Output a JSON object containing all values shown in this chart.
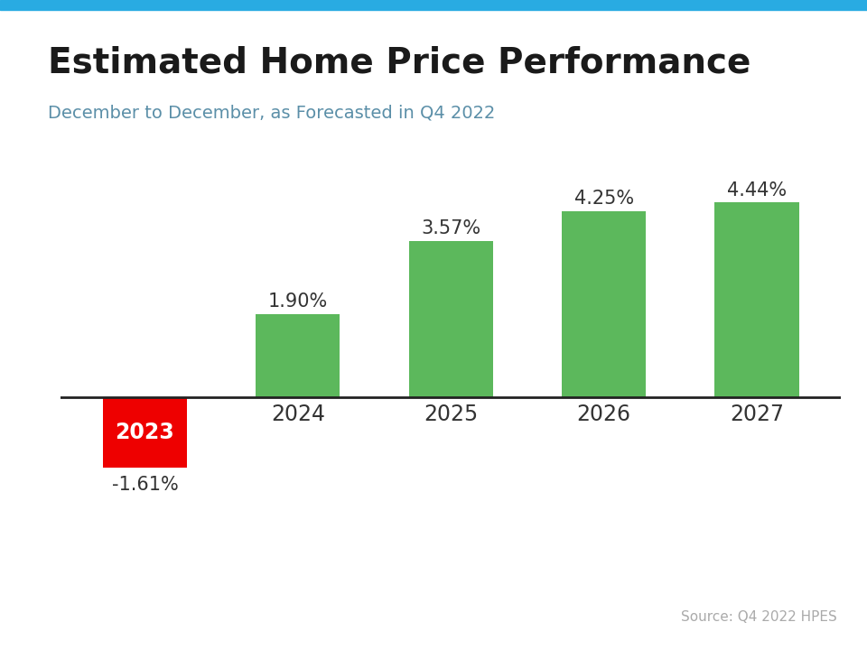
{
  "title": "Estimated Home Price Performance",
  "subtitle": "December to December, as Forecasted in Q4 2022",
  "source": "Source: Q4 2022 HPES",
  "categories": [
    "2023",
    "2024",
    "2025",
    "2026",
    "2027"
  ],
  "values": [
    -1.61,
    1.9,
    3.57,
    4.25,
    4.44
  ],
  "labels": [
    "-1.61%",
    "1.90%",
    "3.57%",
    "4.25%",
    "4.44%"
  ],
  "bar_colors": [
    "#ee0000",
    "#5cb85c",
    "#5cb85c",
    "#5cb85c",
    "#5cb85c"
  ],
  "title_color": "#1a1a1a",
  "subtitle_color": "#5b8fa8",
  "source_color": "#aaaaaa",
  "label_color": "#333333",
  "year_label_color_2023": "#ffffff",
  "year_label_color_others": "#333333",
  "top_bar_color": "#29abe2",
  "background_color": "#ffffff",
  "title_fontsize": 28,
  "subtitle_fontsize": 14,
  "label_fontsize": 15,
  "year_fontsize": 17,
  "source_fontsize": 11,
  "bar_width": 0.55,
  "ylim_min": -2.5,
  "ylim_max": 5.8
}
